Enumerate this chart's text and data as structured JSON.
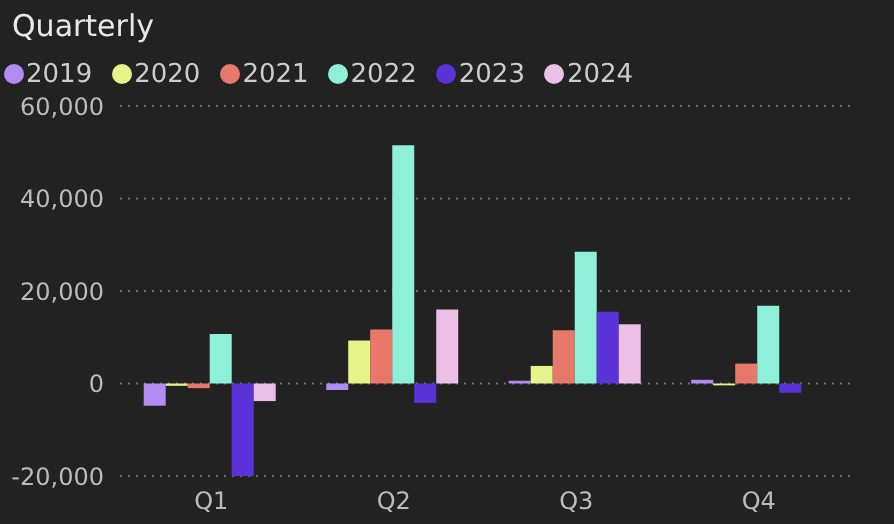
{
  "chart_data": {
    "type": "bar",
    "title": "Quarterly",
    "categories": [
      "Q1",
      "Q2",
      "Q3",
      "Q4"
    ],
    "series": [
      {
        "name": "2019",
        "color": "#b28cf2",
        "values": [
          -4800,
          -1400,
          600,
          800
        ]
      },
      {
        "name": "2020",
        "color": "#e6f58a",
        "values": [
          -500,
          9300,
          3800,
          -400
        ]
      },
      {
        "name": "2021",
        "color": "#e8786a",
        "values": [
          -1000,
          11700,
          11500,
          4300
        ]
      },
      {
        "name": "2022",
        "color": "#8ef0d8",
        "values": [
          10700,
          51500,
          28500,
          16800
        ]
      },
      {
        "name": "2023",
        "color": "#5a32d8",
        "values": [
          -20000,
          -4200,
          15500,
          -2000
        ]
      },
      {
        "name": "2024",
        "color": "#ecbfe6",
        "values": [
          -3800,
          16000,
          12800,
          null
        ]
      }
    ],
    "ylim": [
      -20000,
      60000
    ],
    "yticks": [
      {
        "value": -20000,
        "label": "-20,000"
      },
      {
        "value": 0,
        "label": "0"
      },
      {
        "value": 20000,
        "label": "20,000"
      },
      {
        "value": 40000,
        "label": "40,000"
      },
      {
        "value": 60000,
        "label": "60,000"
      }
    ],
    "grid": "y",
    "legend": "top left"
  }
}
